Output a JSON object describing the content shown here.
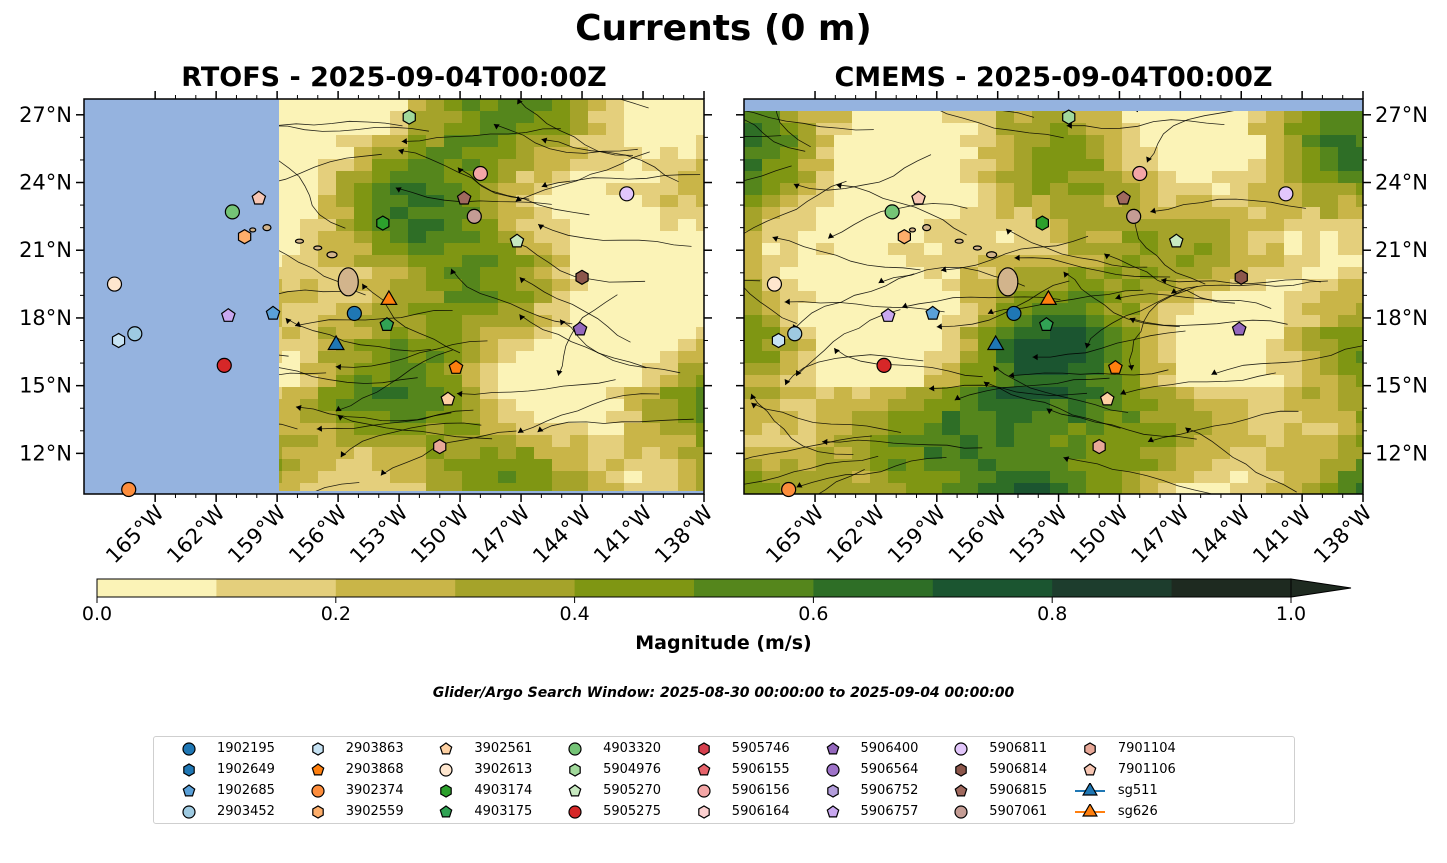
{
  "title": "Currents (0 m)",
  "panels": [
    {
      "title": "RTOFS - 2025-09-04T00:00Z"
    },
    {
      "title": "CMEMS - 2025-09-04T00:00Z"
    }
  ],
  "colors": {
    "land_ocean_mask": "#95b3df",
    "island": "#d2b48c",
    "colorbar": [
      "#fbf3b7",
      "#e4cf7c",
      "#c9b548",
      "#a5a32a",
      "#7f9613",
      "#55861c",
      "#2e6e26",
      "#1b5530",
      "#1d3d2d",
      "#1e2a20"
    ]
  },
  "chart_data": {
    "type": "heatmap",
    "xlabel": "",
    "ylabel": "",
    "xlim": [
      -168.5,
      -138
    ],
    "ylim": [
      10.2,
      27.7
    ],
    "x_ticks": [
      "165°W",
      "162°W",
      "159°W",
      "156°W",
      "153°W",
      "150°W",
      "147°W",
      "144°W",
      "141°W",
      "138°W"
    ],
    "y_ticks": [
      "12°N",
      "15°N",
      "18°N",
      "21°N",
      "24°N",
      "27°N"
    ],
    "colorbar": {
      "label": "Magnitude (m/s)",
      "range": [
        0.0,
        1.0
      ],
      "levels": [
        0.0,
        0.1,
        0.2,
        0.3,
        0.4,
        0.5,
        0.6,
        0.7,
        0.8,
        0.9,
        1.0
      ],
      "ticks": [
        "0.0",
        "0.2",
        "0.4",
        "0.6",
        "0.8",
        "1.0"
      ],
      "extend": "max"
    },
    "search_window": "Glider/Argo Search Window: 2025-08-30 00:00:00 to 2025-09-04 00:00:00",
    "series": [
      {
        "name": "1902195",
        "marker": "circle",
        "color": "#1f77b4",
        "lon": -155.2,
        "lat": 18.2
      },
      {
        "name": "1902649",
        "marker": "hexagon",
        "color": "#1f77b4",
        "lon": null,
        "lat": null
      },
      {
        "name": "1902685",
        "marker": "pentagon",
        "color": "#5aa0d8",
        "lon": -159.2,
        "lat": 18.2
      },
      {
        "name": "2903452",
        "marker": "circle",
        "color": "#9ecae1",
        "lon": -166.0,
        "lat": 17.3
      },
      {
        "name": "2903863",
        "marker": "hexagon",
        "color": "#c6e2f3",
        "lon": -166.8,
        "lat": 17.0
      },
      {
        "name": "2903868",
        "marker": "pentagon",
        "color": "#ff7f0e",
        "lon": -150.2,
        "lat": 15.8
      },
      {
        "name": "3902374",
        "marker": "circle",
        "color": "#fd8d3c",
        "lon": -166.3,
        "lat": 10.4
      },
      {
        "name": "3902559",
        "marker": "hexagon",
        "color": "#fdae6b",
        "lon": -160.6,
        "lat": 21.6
      },
      {
        "name": "3902561",
        "marker": "pentagon",
        "color": "#fdd0a2",
        "lon": -150.6,
        "lat": 14.4
      },
      {
        "name": "3902613",
        "marker": "circle",
        "color": "#fee6ce",
        "lon": -167.0,
        "lat": 19.5
      },
      {
        "name": "4903174",
        "marker": "hexagon",
        "color": "#2ca02c",
        "lon": -153.8,
        "lat": 22.2
      },
      {
        "name": "4903175",
        "marker": "pentagon",
        "color": "#31a354",
        "lon": -153.6,
        "lat": 17.7
      },
      {
        "name": "4903320",
        "marker": "circle",
        "color": "#74c476",
        "lon": -161.2,
        "lat": 22.7
      },
      {
        "name": "5904976",
        "marker": "hexagon",
        "color": "#a1d99b",
        "lon": -152.5,
        "lat": 26.9
      },
      {
        "name": "5905270",
        "marker": "pentagon",
        "color": "#c7e9c0",
        "lon": -147.2,
        "lat": 21.4
      },
      {
        "name": "5905275",
        "marker": "circle",
        "color": "#d62728",
        "lon": -161.6,
        "lat": 15.9
      },
      {
        "name": "5905746",
        "marker": "hexagon",
        "color": "#d6404e",
        "lon": null,
        "lat": null
      },
      {
        "name": "5906155",
        "marker": "pentagon",
        "color": "#e7636b",
        "lon": null,
        "lat": null
      },
      {
        "name": "5906156",
        "marker": "circle",
        "color": "#f4a6a6",
        "lon": -149.0,
        "lat": 24.4
      },
      {
        "name": "5906164",
        "marker": "hexagon",
        "color": "#fcd0d0",
        "lon": null,
        "lat": null
      },
      {
        "name": "5906400",
        "marker": "pentagon",
        "color": "#9467bd",
        "lon": -144.1,
        "lat": 17.5
      },
      {
        "name": "5906564",
        "marker": "circle",
        "color": "#9e72c8",
        "lon": null,
        "lat": null
      },
      {
        "name": "5906752",
        "marker": "hexagon",
        "color": "#b39ddb",
        "lon": null,
        "lat": null
      },
      {
        "name": "5906757",
        "marker": "pentagon",
        "color": "#c9a8f0",
        "lon": -161.4,
        "lat": 18.1
      },
      {
        "name": "5906811",
        "marker": "circle",
        "color": "#e2c6fb",
        "lon": -141.8,
        "lat": 23.5
      },
      {
        "name": "5906814",
        "marker": "hexagon",
        "color": "#8c564b",
        "lon": -144.0,
        "lat": 19.8
      },
      {
        "name": "5906815",
        "marker": "pentagon",
        "color": "#a0695e",
        "lon": -149.8,
        "lat": 23.3
      },
      {
        "name": "5907061",
        "marker": "circle",
        "color": "#c49c94",
        "lon": -149.3,
        "lat": 22.5
      },
      {
        "name": "7901104",
        "marker": "hexagon",
        "color": "#e8a898",
        "lon": -151.0,
        "lat": 12.3
      },
      {
        "name": "7901106",
        "marker": "pentagon",
        "color": "#f7c6b3",
        "lon": -159.9,
        "lat": 23.3
      },
      {
        "name": "sg511",
        "marker": "triangle",
        "color": "#1f77b4",
        "lon": -156.1,
        "lat": 16.8
      },
      {
        "name": "sg626",
        "marker": "triangle",
        "color": "#ff7f0e",
        "lon": -153.5,
        "lat": 18.8
      }
    ]
  }
}
